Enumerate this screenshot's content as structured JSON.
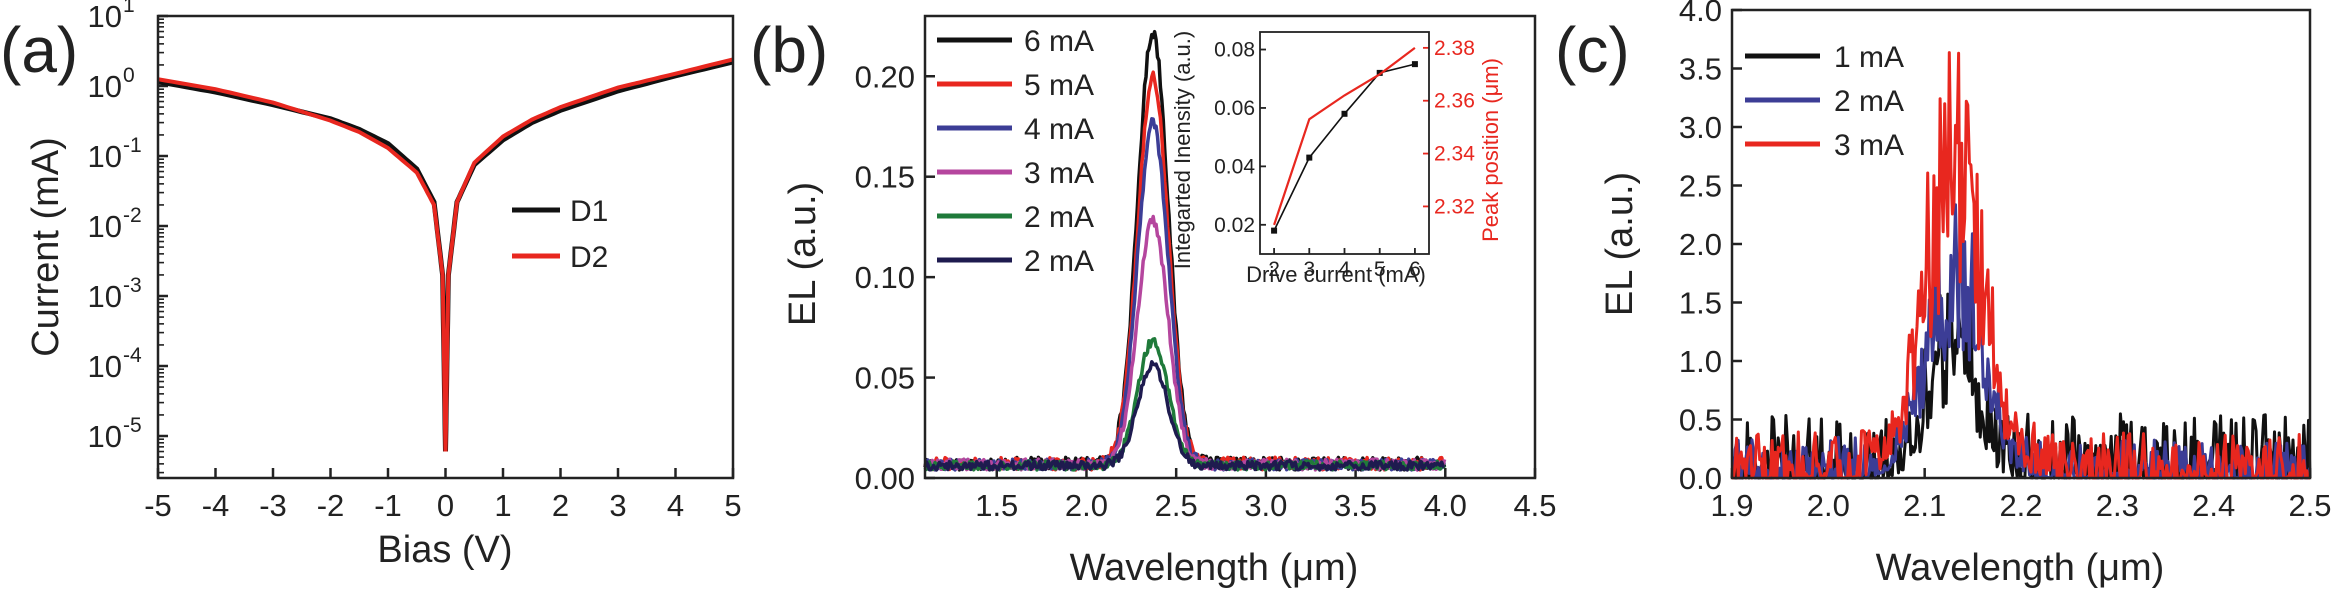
{
  "chart_data": [
    {
      "panel": "(a)",
      "type": "line",
      "xlabel": "Bias (V)",
      "ylabel": "Current (mA)",
      "yscale": "log",
      "xlim": [
        -5,
        5
      ],
      "ylim_exp": [
        -5.6,
        1
      ],
      "xticks": [
        "-5",
        "-4",
        "-3",
        "-2",
        "-1",
        "0",
        "1",
        "2",
        "3",
        "4",
        "5"
      ],
      "yticks": [
        {
          "base": "10",
          "exp": "1",
          "value": 1
        },
        {
          "base": "10",
          "exp": "0",
          "value": 0
        },
        {
          "base": "10",
          "exp": "-1",
          "value": -1
        },
        {
          "base": "10",
          "exp": "-2",
          "value": -2
        },
        {
          "base": "10",
          "exp": "-3",
          "value": -3
        },
        {
          "base": "10",
          "exp": "-4",
          "value": -4
        },
        {
          "base": "10",
          "exp": "-5",
          "value": -5
        }
      ],
      "legend_position": "center-right",
      "series": [
        {
          "name": "D1",
          "color": "#111111",
          "x": [
            -5,
            -4,
            -3,
            -2,
            -1.5,
            -1,
            -0.5,
            -0.2,
            -0.05,
            0,
            0.05,
            0.2,
            0.5,
            1,
            1.5,
            2,
            3,
            4,
            5
          ],
          "y": [
            1.15,
            0.82,
            0.54,
            0.34,
            0.24,
            0.15,
            0.065,
            0.022,
            0.002,
            6e-06,
            0.002,
            0.022,
            0.075,
            0.17,
            0.3,
            0.45,
            0.85,
            1.4,
            2.2
          ]
        },
        {
          "name": "D2",
          "color": "#e8271f",
          "x": [
            -5,
            -4,
            -3,
            -2,
            -1.5,
            -1,
            -0.5,
            -0.2,
            -0.05,
            0,
            0.05,
            0.2,
            0.5,
            1,
            1.5,
            2,
            3,
            4,
            5
          ],
          "y": [
            1.25,
            0.9,
            0.58,
            0.32,
            0.22,
            0.13,
            0.058,
            0.02,
            0.002,
            6e-06,
            0.002,
            0.022,
            0.08,
            0.19,
            0.33,
            0.5,
            0.95,
            1.5,
            2.4
          ]
        }
      ]
    },
    {
      "panel": "(b)",
      "type": "line",
      "xlabel": "Wavelength (μm)",
      "ylabel": "EL (a.u.)",
      "xlim": [
        1.1,
        4.5
      ],
      "ylim": [
        0,
        0.23
      ],
      "xticks": [
        "1.5",
        "2.0",
        "2.5",
        "3.0",
        "3.5",
        "4.0",
        "4.5"
      ],
      "yticks": [
        "0.00",
        "0.05",
        "0.10",
        "0.15",
        "0.20"
      ],
      "legend_position": "top-left",
      "x_range": [
        1.1,
        4.0
      ],
      "peak_center": 2.37,
      "peak_width": 0.085,
      "series": [
        {
          "name": "6 mA",
          "color": "#111111",
          "peak": 0.215,
          "noise": 0.007
        },
        {
          "name": "5 mA",
          "color": "#e8271f",
          "peak": 0.192,
          "noise": 0.007
        },
        {
          "name": "4 mA",
          "color": "#3c3d96",
          "peak": 0.17,
          "noise": 0.006
        },
        {
          "name": "3 mA",
          "color": "#b5469e",
          "peak": 0.122,
          "noise": 0.006
        },
        {
          "name": "2 mA",
          "color": "#1f7a3a",
          "peak": 0.062,
          "noise": 0.005
        },
        {
          "name": "2 mA",
          "color": "#1e1b4f",
          "peak": 0.05,
          "noise": 0.005
        }
      ],
      "inset": {
        "xlabel": "Drive current (mA)",
        "ylabel_left": "Integarted Inensity (a.u.)",
        "ylabel_right": "Peak position (μm)",
        "xticks": [
          "2",
          "3",
          "4",
          "5",
          "6"
        ],
        "yticks_left": [
          "0.02",
          "0.04",
          "0.06",
          "0.08"
        ],
        "yticks_right": [
          "2.32",
          "2.34",
          "2.36",
          "2.38"
        ],
        "xlim": [
          1.6,
          6.4
        ],
        "ylim_left": [
          0.01,
          0.086
        ],
        "ylim_right": [
          2.302,
          2.386
        ],
        "intensity": {
          "color": "#111111",
          "x": [
            2,
            3,
            4,
            5,
            6
          ],
          "y": [
            0.018,
            0.043,
            0.058,
            0.072,
            0.075
          ]
        },
        "peak_position": {
          "color": "#e8271f",
          "x": [
            2,
            3,
            4,
            5,
            6
          ],
          "y": [
            2.313,
            2.353,
            2.362,
            2.37,
            2.38
          ]
        }
      }
    },
    {
      "panel": "(c)",
      "type": "line",
      "xlabel": "Wavelength (μm)",
      "ylabel": "EL (a.u.)",
      "xlim": [
        1.9,
        2.5
      ],
      "ylim": [
        0,
        4.0
      ],
      "xticks": [
        "1.9",
        "2.0",
        "2.1",
        "2.2",
        "2.3",
        "2.4",
        "2.5"
      ],
      "yticks": [
        "0.0",
        "0.5",
        "1.0",
        "1.5",
        "2.0",
        "2.5",
        "3.0",
        "3.5",
        "4.0"
      ],
      "legend_position": "top-left",
      "peak_center": 2.13,
      "series": [
        {
          "name": "1 mA",
          "color": "#111111",
          "peak": 1.1,
          "width": 0.022,
          "noise": 0.55
        },
        {
          "name": "2 mA",
          "color": "#3c3d96",
          "peak": 1.7,
          "width": 0.028,
          "noise": 0.35
        },
        {
          "name": "3 mA",
          "color": "#e8271f",
          "peak": 2.6,
          "width": 0.03,
          "noise": 0.4
        }
      ]
    }
  ]
}
